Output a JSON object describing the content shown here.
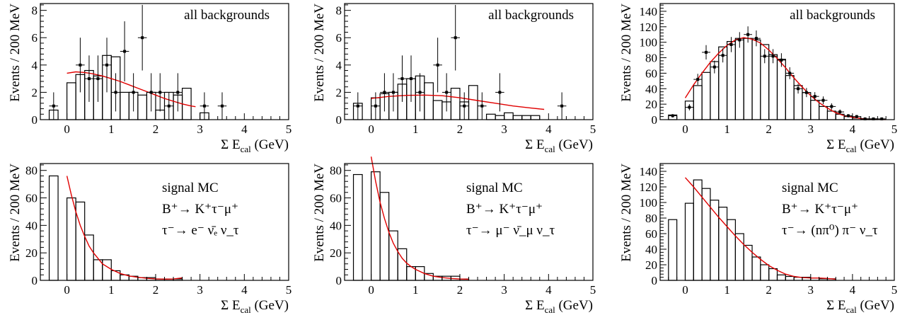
{
  "figure": {
    "x_axis_label": "Σ E",
    "x_axis_label_sub": "cal",
    "x_axis_unit": "(GeV)",
    "y_axis_label": "Events / 200 MeV"
  },
  "chart_data": [
    {
      "type": "bar",
      "title": "all backgrounds",
      "xlim": [
        -0.6,
        5
      ],
      "ylim": [
        0,
        8.5
      ],
      "xticks": [
        0,
        1,
        2,
        3,
        4,
        5
      ],
      "yticks": [
        0,
        2,
        4,
        6,
        8
      ],
      "bin_width": 0.2,
      "hist": {
        "x_low": [
          -0.4,
          0.0,
          0.2,
          0.4,
          0.6,
          0.8,
          1.0,
          1.2,
          1.4,
          1.6,
          1.8,
          2.0,
          2.2,
          2.4,
          2.6,
          2.8,
          3.0,
          3.2,
          3.4,
          3.6,
          3.8,
          4.0,
          4.2,
          4.4,
          4.6,
          4.8
        ],
        "values": [
          0.7,
          2.7,
          3.3,
          3.6,
          3.2,
          4.7,
          4.6,
          2.0,
          2.0,
          1.8,
          2.0,
          0.7,
          2.0,
          1.8,
          2.3,
          0.0,
          0.5,
          0.0,
          0.0,
          0.0,
          0.0,
          0.0,
          0.0,
          0.0,
          0.0,
          0.0
        ]
      },
      "data_points": {
        "x": [
          -0.3,
          0.3,
          0.5,
          0.7,
          0.9,
          1.1,
          1.3,
          1.5,
          1.7,
          1.9,
          2.1,
          2.3,
          2.5,
          3.1,
          3.5
        ],
        "y": [
          1,
          4,
          3,
          3,
          4,
          2,
          5,
          2,
          6,
          2,
          2,
          1,
          2,
          1,
          1
        ],
        "err": [
          1.0,
          2.0,
          1.7,
          1.7,
          2.0,
          1.4,
          2.2,
          1.4,
          2.4,
          1.4,
          1.4,
          1.0,
          1.4,
          1.0,
          1.0
        ]
      },
      "fit": {
        "x": [
          0.0,
          0.2,
          0.4,
          0.6,
          0.8,
          1.0,
          1.2,
          1.4,
          1.6,
          1.8,
          2.0,
          2.2,
          2.4,
          2.6,
          2.8,
          2.9
        ],
        "y": [
          3.4,
          3.5,
          3.45,
          3.35,
          3.2,
          3.0,
          2.8,
          2.55,
          2.3,
          2.05,
          1.8,
          1.55,
          1.35,
          1.15,
          1.0,
          0.95
        ]
      }
    },
    {
      "type": "bar",
      "title": "all backgrounds",
      "xlim": [
        -0.6,
        5
      ],
      "ylim": [
        0,
        8.5
      ],
      "xticks": [
        0,
        1,
        2,
        3,
        4,
        5
      ],
      "yticks": [
        0,
        2,
        4,
        6,
        8
      ],
      "bin_width": 0.2,
      "hist": {
        "x_low": [
          -0.4,
          0.0,
          0.2,
          0.4,
          0.6,
          0.8,
          1.0,
          1.2,
          1.4,
          1.6,
          1.8,
          2.0,
          2.2,
          2.4,
          2.6,
          2.8,
          3.0,
          3.2,
          3.4,
          3.6,
          3.8,
          4.0,
          4.2,
          4.4,
          4.6,
          4.8
        ],
        "values": [
          1.2,
          1.6,
          1.9,
          2.0,
          2.6,
          3.0,
          3.2,
          2.7,
          1.4,
          1.3,
          2.3,
          1.3,
          2.5,
          0.0,
          0.4,
          0.3,
          0.5,
          0.3,
          0.3,
          0.3,
          0.0,
          0.0,
          0.0,
          0.0,
          0.0,
          0.0
        ]
      },
      "data_points": {
        "x": [
          -0.3,
          0.1,
          0.3,
          0.5,
          0.7,
          0.9,
          1.1,
          1.5,
          1.7,
          1.9,
          2.1,
          2.5,
          2.9,
          4.3
        ],
        "y": [
          1,
          1,
          2,
          2,
          3,
          3,
          2,
          4,
          2,
          6,
          1,
          1,
          2,
          1
        ],
        "err": [
          1.0,
          1.0,
          1.4,
          1.4,
          1.7,
          1.7,
          1.4,
          2.0,
          1.4,
          2.4,
          1.0,
          1.0,
          1.4,
          1.0
        ]
      },
      "fit": {
        "x": [
          0.0,
          0.4,
          0.8,
          1.2,
          1.6,
          2.0,
          2.4,
          2.8,
          3.2,
          3.6,
          3.9
        ],
        "y": [
          1.55,
          1.7,
          1.78,
          1.8,
          1.75,
          1.6,
          1.4,
          1.2,
          1.0,
          0.85,
          0.75
        ]
      }
    },
    {
      "type": "bar",
      "title": "all backgrounds",
      "xlim": [
        -0.6,
        5
      ],
      "ylim": [
        0,
        150
      ],
      "xticks": [
        0,
        1,
        2,
        3,
        4,
        5
      ],
      "yticks": [
        0,
        20,
        40,
        60,
        80,
        100,
        120,
        140
      ],
      "bin_width": 0.2,
      "hist": {
        "x_low": [
          -0.4,
          0.0,
          0.2,
          0.4,
          0.6,
          0.8,
          1.0,
          1.2,
          1.4,
          1.6,
          1.8,
          2.0,
          2.2,
          2.4,
          2.6,
          2.8,
          3.0,
          3.2,
          3.4,
          3.6,
          3.8,
          4.0,
          4.2,
          4.4,
          4.6,
          4.8
        ],
        "values": [
          6,
          24,
          44,
          61,
          75,
          94,
          101,
          105,
          105,
          103,
          97,
          84,
          78,
          57,
          44,
          35,
          25,
          17,
          11,
          7,
          4,
          2,
          1,
          1,
          0,
          0
        ]
      },
      "data_points": {
        "x": [
          -0.3,
          0.1,
          0.3,
          0.5,
          0.7,
          0.9,
          1.1,
          1.3,
          1.5,
          1.7,
          1.9,
          2.1,
          2.3,
          2.5,
          2.7,
          2.9,
          3.1,
          3.3,
          3.5,
          3.7,
          3.9,
          4.1,
          4.3,
          4.5,
          4.7
        ],
        "y": [
          5,
          16,
          52,
          87,
          68,
          83,
          97,
          103,
          110,
          105,
          82,
          82,
          77,
          60,
          40,
          35,
          30,
          25,
          17,
          10,
          5,
          4,
          1,
          1,
          1
        ],
        "err": [
          2.2,
          4,
          7.2,
          9.3,
          8.2,
          9.1,
          9.8,
          10.1,
          10.5,
          10.2,
          9.1,
          9.1,
          8.8,
          7.7,
          6.3,
          5.9,
          5.5,
          5,
          4.1,
          3.2,
          2.2,
          2,
          1,
          1,
          1
        ]
      },
      "fit": {
        "x": [
          0.0,
          0.2,
          0.4,
          0.6,
          0.8,
          1.0,
          1.2,
          1.4,
          1.6,
          1.8,
          2.0,
          2.2,
          2.4,
          2.6,
          2.8,
          3.0,
          3.2,
          3.4,
          3.6,
          3.8,
          4.0,
          4.2,
          4.4,
          4.6,
          4.8
        ],
        "y": [
          28,
          45,
          60,
          74,
          86,
          96,
          103,
          106,
          104,
          99,
          90,
          79,
          67,
          54,
          42,
          31,
          22,
          15,
          9,
          5,
          3,
          1.5,
          0.6,
          0.2,
          0.1
        ]
      }
    },
    {
      "type": "bar",
      "annotation": [
        "signal MC",
        "B⁺→ K⁺τ⁻μ⁺",
        "τ⁻→ e⁻ ν̄ₑ ν_τ"
      ],
      "xlim": [
        -0.6,
        5
      ],
      "ylim": [
        0,
        85
      ],
      "xticks": [
        0,
        1,
        2,
        3,
        4,
        5
      ],
      "yticks": [
        0,
        20,
        40,
        60,
        80
      ],
      "bin_width": 0.2,
      "hist": {
        "x_low": [
          -0.4,
          0.0,
          0.2,
          0.4,
          0.6,
          0.8,
          1.0,
          1.2,
          1.4,
          1.6,
          1.8,
          2.0,
          2.2,
          2.4,
          2.6
        ],
        "values": [
          76,
          60,
          57,
          33,
          15,
          15,
          7,
          4,
          3,
          2,
          2,
          1,
          1,
          1,
          0
        ]
      },
      "fit": {
        "x": [
          0.0,
          0.1,
          0.2,
          0.3,
          0.4,
          0.5,
          0.6,
          0.7,
          0.8,
          1.0,
          1.2,
          1.4,
          1.6,
          1.8,
          2.0,
          2.2,
          2.4,
          2.6
        ],
        "y": [
          76,
          62,
          50,
          40,
          32,
          25,
          20,
          16,
          12,
          8,
          5,
          3.2,
          2.2,
          1.5,
          1.1,
          0.9,
          1.0,
          1.8
        ]
      }
    },
    {
      "type": "bar",
      "annotation": [
        "signal MC",
        "B⁺→ K⁺τ⁻μ⁺",
        "τ⁻→ μ⁻ ν̄_μ ν_τ"
      ],
      "xlim": [
        -0.6,
        5
      ],
      "ylim": [
        0,
        85
      ],
      "xticks": [
        0,
        1,
        2,
        3,
        4,
        5
      ],
      "yticks": [
        0,
        20,
        40,
        60,
        80
      ],
      "bin_width": 0.2,
      "hist": {
        "x_low": [
          -0.4,
          0.0,
          0.2,
          0.4,
          0.6,
          0.8,
          1.0,
          1.2,
          1.4,
          1.6,
          1.8,
          2.0,
          2.2
        ],
        "values": [
          77,
          79,
          64,
          36,
          23,
          10,
          10,
          5,
          3,
          3,
          3,
          1,
          0
        ]
      },
      "fit": {
        "x": [
          0.0,
          0.1,
          0.2,
          0.3,
          0.4,
          0.5,
          0.6,
          0.7,
          0.8,
          0.9,
          1.0,
          1.2,
          1.4,
          1.6,
          1.8,
          2.0,
          2.2
        ],
        "y": [
          90,
          72,
          57,
          45,
          35,
          27,
          21,
          16,
          12.5,
          10,
          8,
          5,
          3,
          2,
          1.4,
          1.0,
          0.8
        ]
      }
    },
    {
      "type": "bar",
      "annotation": [
        "signal MC",
        "B⁺→ K⁺τ⁻μ⁺",
        "τ⁻→ (nπ⁰) π⁻ ν_τ"
      ],
      "xlim": [
        -0.6,
        5
      ],
      "ylim": [
        0,
        150
      ],
      "xticks": [
        0,
        1,
        2,
        3,
        4,
        5
      ],
      "yticks": [
        0,
        20,
        40,
        60,
        80,
        100,
        120,
        140
      ],
      "bin_width": 0.2,
      "hist": {
        "x_low": [
          -0.4,
          0.0,
          0.2,
          0.4,
          0.6,
          0.8,
          1.0,
          1.2,
          1.4,
          1.6,
          1.8,
          2.0,
          2.2,
          2.4,
          2.6,
          2.8,
          3.0,
          3.2,
          3.4,
          3.6
        ],
        "values": [
          78,
          99,
          129,
          118,
          103,
          94,
          78,
          60,
          45,
          30,
          20,
          15,
          7,
          5,
          4,
          4,
          3,
          2,
          2,
          0
        ]
      },
      "fit": {
        "x": [
          0.0,
          0.2,
          0.4,
          0.6,
          0.8,
          1.0,
          1.2,
          1.4,
          1.6,
          1.8,
          2.0,
          2.2,
          2.4,
          2.6,
          2.8,
          3.0,
          3.2,
          3.4,
          3.6
        ],
        "y": [
          132,
          120,
          107,
          94,
          81,
          69,
          57,
          46,
          36,
          27,
          19,
          13,
          8,
          5,
          3.5,
          3,
          3,
          2.5,
          1.5
        ]
      }
    }
  ]
}
